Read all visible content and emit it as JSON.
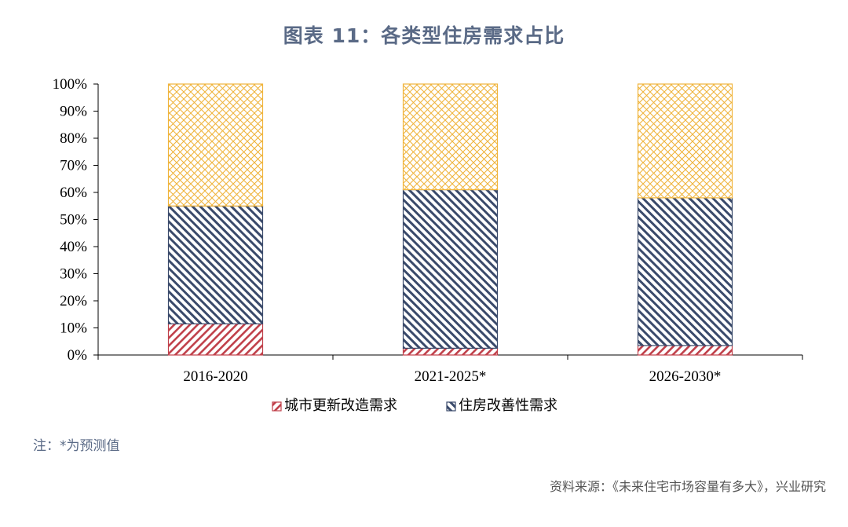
{
  "title": "图表 11：各类型住房需求占比",
  "note": "注：*为预测值",
  "source": "资料来源：《未来住宅市场容量有多大》，兴业研究",
  "chart_data": {
    "type": "bar",
    "stacked": true,
    "categories": [
      "2016-2020",
      "2021-2025*",
      "2026-2030*"
    ],
    "series": [
      {
        "name": "城市更新改造需求",
        "values": [
          11.5,
          2.5,
          3.5
        ],
        "color": "#c0404a",
        "pattern": "diagonal-down"
      },
      {
        "name": "住房改善性需求",
        "values": [
          43.5,
          58.5,
          54.5
        ],
        "color": "#3a4a6b",
        "pattern": "diagonal-up"
      },
      {
        "name": "",
        "values": [
          45,
          39,
          42
        ],
        "color": "#f0b43c",
        "pattern": "crosshatch"
      }
    ],
    "ylim": [
      0,
      100
    ],
    "yticks": [
      "0%",
      "10%",
      "20%",
      "30%",
      "40%",
      "50%",
      "60%",
      "70%",
      "80%",
      "90%",
      "100%"
    ],
    "legend_position": "bottom-center",
    "grid": false
  }
}
